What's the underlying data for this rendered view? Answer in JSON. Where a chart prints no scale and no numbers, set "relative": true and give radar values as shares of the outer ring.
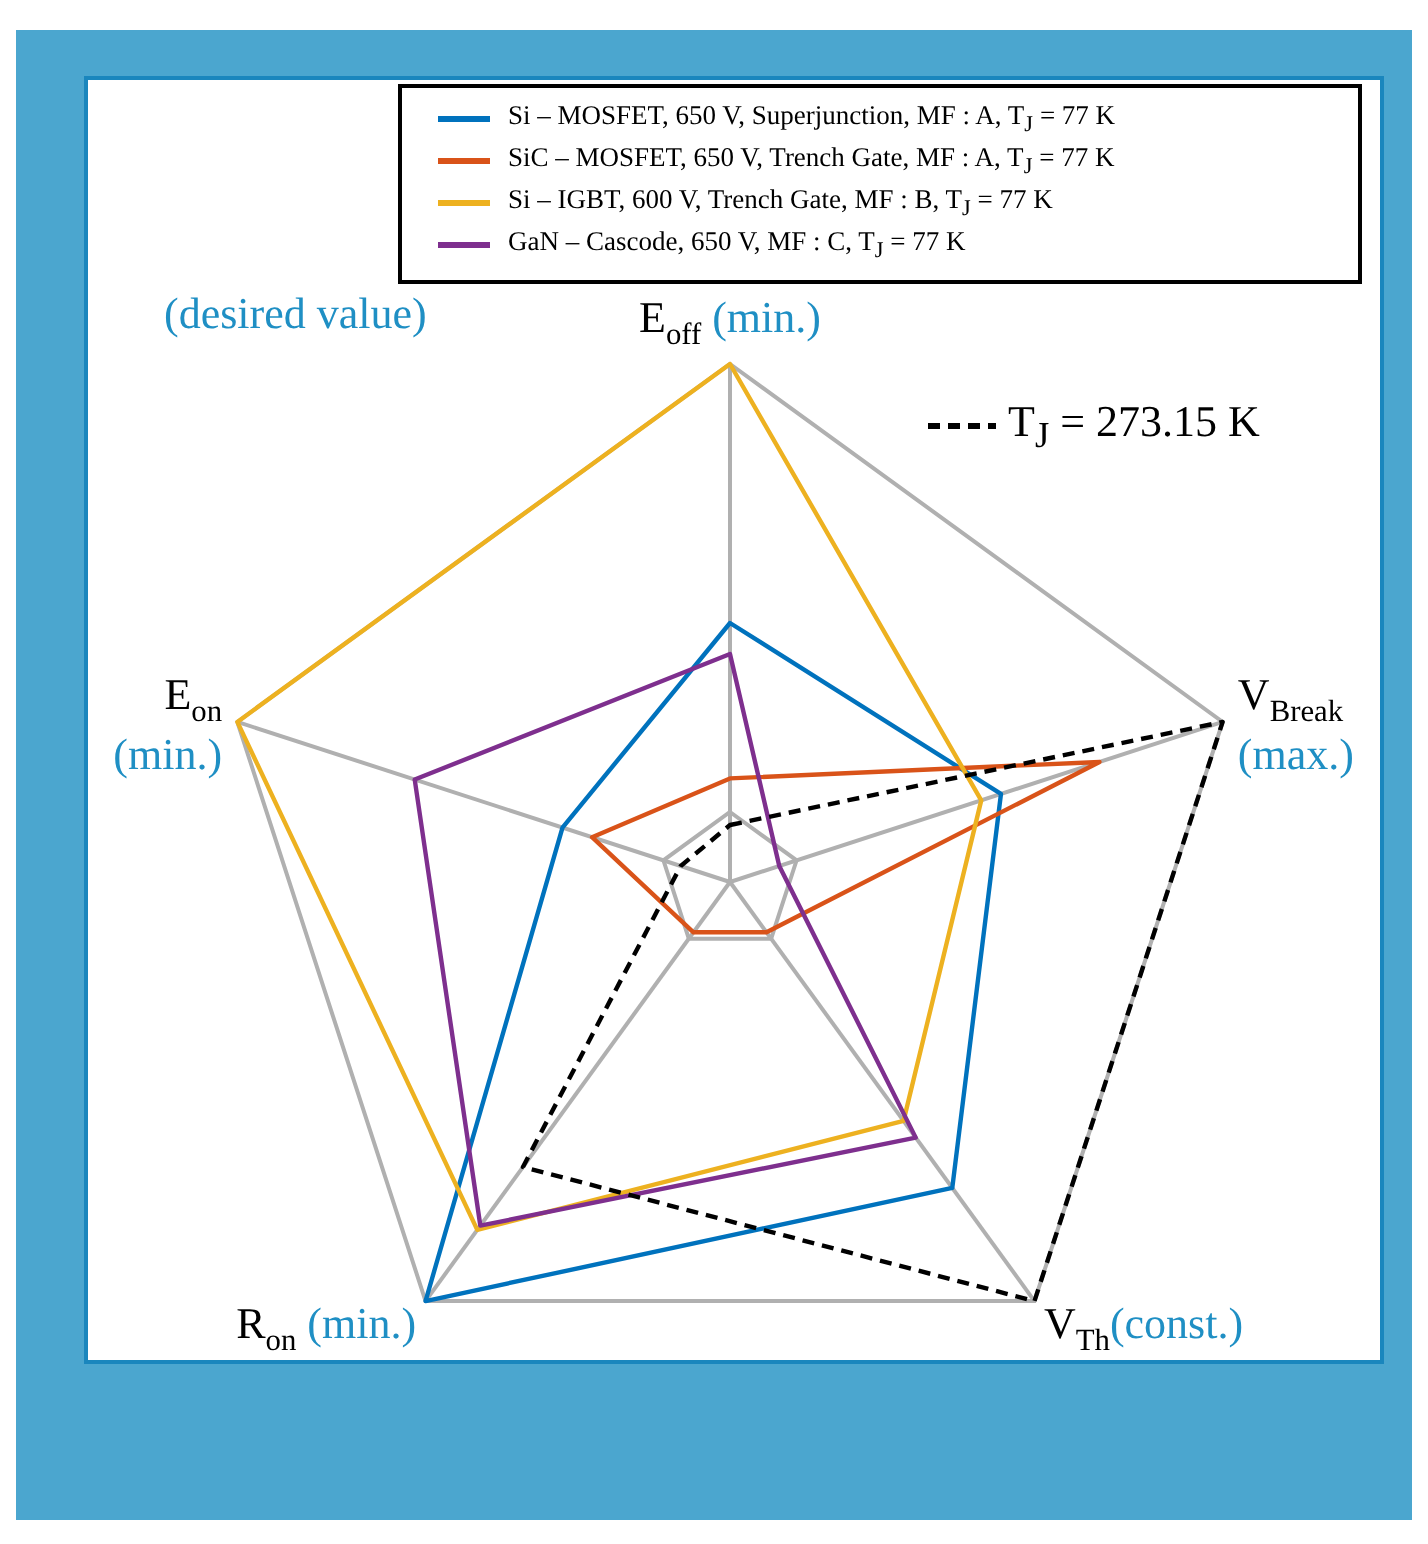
{
  "chart_data": {
    "type": "radar",
    "relative": true,
    "grid": true,
    "legend": "top",
    "categories": [
      "E$_{off}$ (min.)",
      "V$_{Break}$ (max.)",
      "V$_{Th}$(const.)",
      "R$_{on}$ (min.)",
      "E$_{on}$ (min.)"
    ],
    "annotations": [
      "(desired value)"
    ],
    "series": [
      {
        "name": "Si – MOSFET, 650 V, Superjunction, MF : A, T$_{J}$ = 77 K",
        "color": "#0072bd",
        "values": [
          0.5,
          0.55,
          0.73,
          1,
          0.34
        ]
      },
      {
        "name": "SiC – MOSFET, 650 V, Trench Gate, MF : A, T$_{J}$ = 77 K",
        "color": "#d95319",
        "values": [
          0.2,
          0.75,
          0.12,
          0.12,
          0.28
        ]
      },
      {
        "name": "Si – IGBT, 600 V, Trench Gate, MF : B, T$_{J}$ = 77 K",
        "color": "#edb120",
        "values": [
          1,
          0.51,
          0.57,
          0.83,
          1
        ]
      },
      {
        "name": "GaN – Cascode, 650 V, MF : C, T$_{J}$ = 77 K",
        "color": "#7e2f8e",
        "values": [
          0.44,
          0.1,
          0.61,
          0.82,
          0.64
        ]
      },
      {
        "name": "T$_{J}$ = 273.15 K",
        "color": "#000000",
        "line_style": "dashed",
        "values": [
          0.11,
          1,
          1,
          0.68,
          0.1
        ]
      }
    ]
  }
}
